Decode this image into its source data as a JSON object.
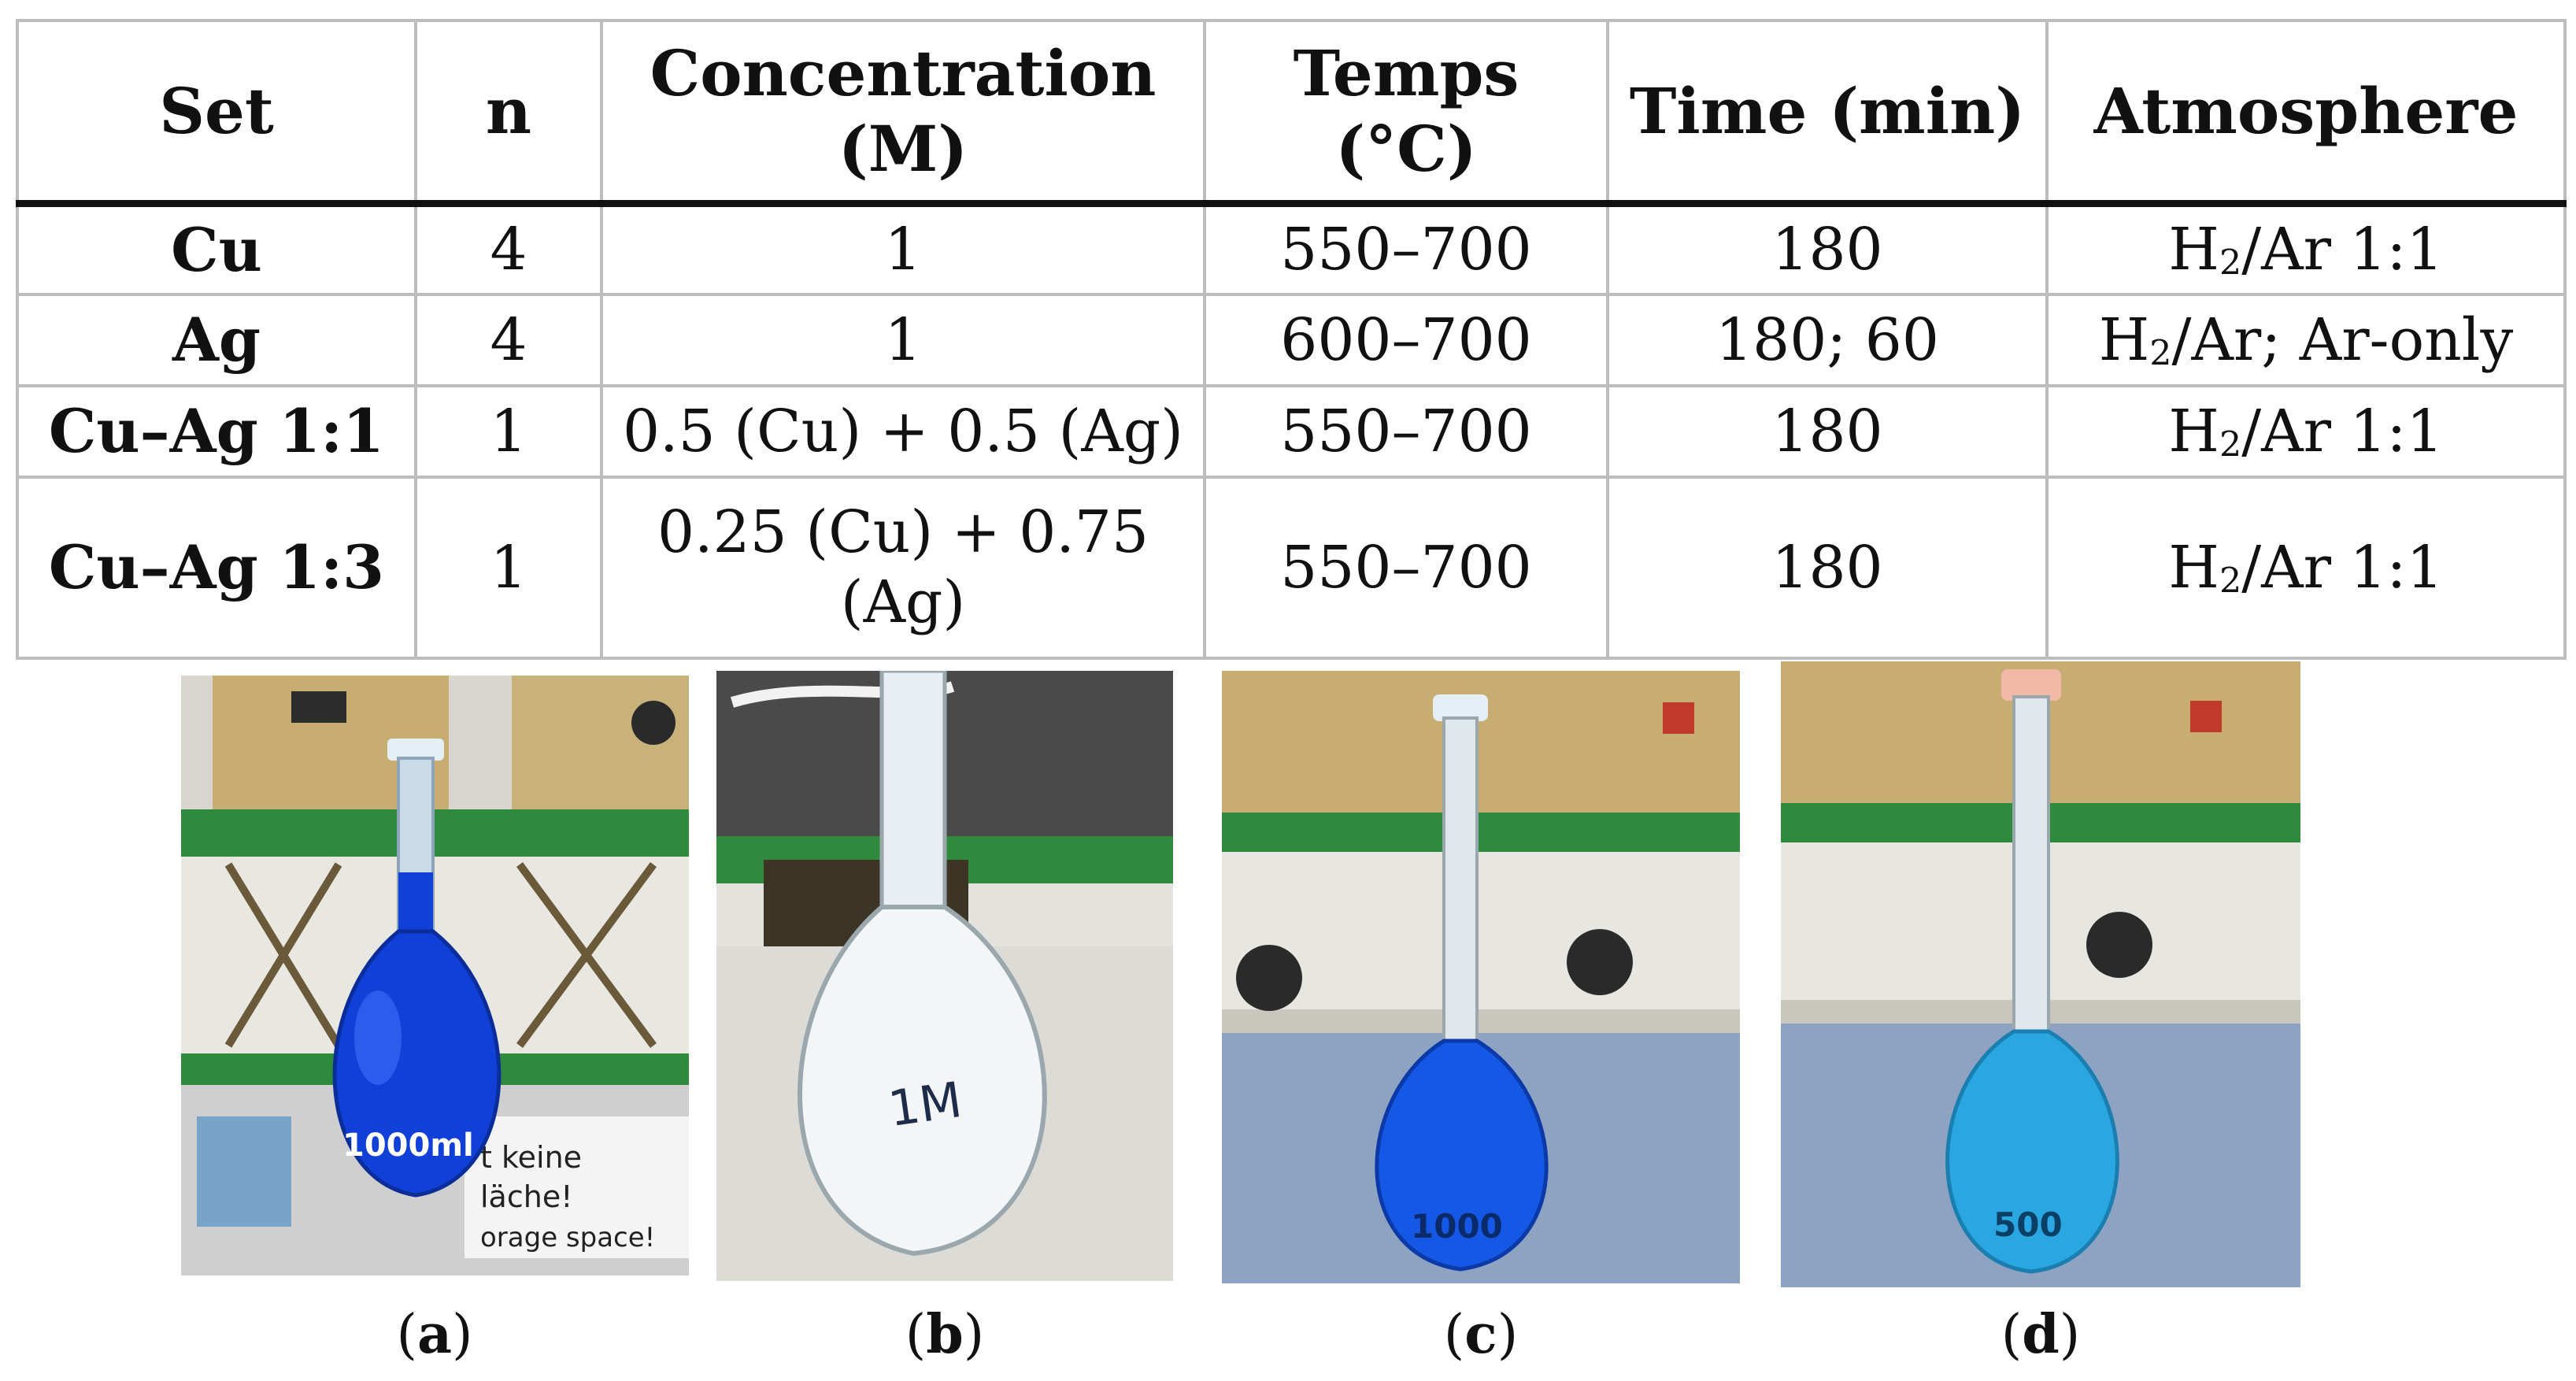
{
  "table": {
    "headers": {
      "set": "Set",
      "n": "n",
      "concentration": [
        "Concentration",
        "(M)"
      ],
      "temps": [
        "Temps",
        "(°C)"
      ],
      "time": "Time (min)",
      "atmosphere": "Atmosphere"
    },
    "rows": [
      {
        "set": "Cu",
        "n": "4",
        "concentration": "1",
        "temps": "550–700",
        "time": "180",
        "atm_pre": "H",
        "atm_sub": "2",
        "atm_post": "/Ar 1:1"
      },
      {
        "set": "Ag",
        "n": "4",
        "concentration": "1",
        "temps": "600–700",
        "time": "180; 60",
        "atm_pre": "H",
        "atm_sub": "2",
        "atm_post": "/Ar; Ar-only"
      },
      {
        "set": "Cu–Ag 1:1",
        "n": "1",
        "concentration": "0.5 (Cu) + 0.5 (Ag)",
        "temps": "550–700",
        "time": "180",
        "atm_pre": "H",
        "atm_sub": "2",
        "atm_post": "/Ar 1:1"
      },
      {
        "set": "Cu–Ag 1:3",
        "n": "1",
        "concentration": [
          "0.25 (Cu) + 0.75",
          "(Ag)"
        ],
        "temps": "550–700",
        "time": "180",
        "atm_pre": "H",
        "atm_sub": "2",
        "atm_post": "/Ar 1:1"
      }
    ]
  },
  "photos": [
    {
      "caption_letter": "a",
      "flask_label": "1000ml",
      "sign_lines": [
        "t keine",
        "läche!",
        "orage space!"
      ]
    },
    {
      "caption_letter": "b",
      "flask_label": "1M"
    },
    {
      "caption_letter": "c",
      "flask_label": "1000"
    },
    {
      "caption_letter": "d",
      "flask_label": "500"
    }
  ],
  "colors": {
    "grid": "#bdbdbd",
    "solution_dark_blue": "#1040d8",
    "solution_light_blue": "#2aa6e0",
    "bench_green": "#2e8b3e",
    "instrument_beige": "#c9b27a"
  }
}
